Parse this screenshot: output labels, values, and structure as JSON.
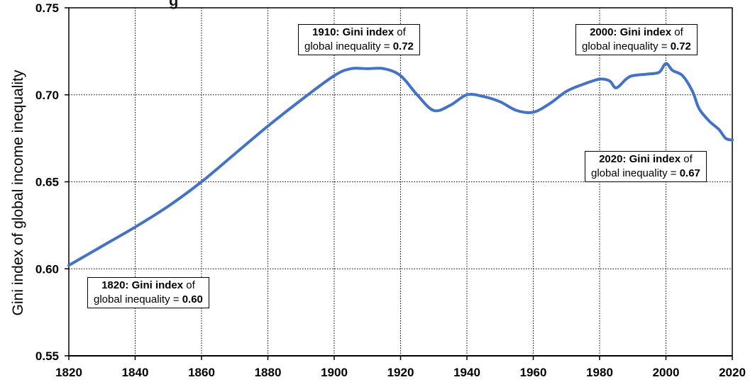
{
  "title_fragment": "g",
  "chart_data": {
    "type": "line",
    "ylabel": "Gini index of global income inequality",
    "xlabel": "",
    "xlim": [
      1820,
      2020
    ],
    "ylim": [
      0.55,
      0.75
    ],
    "x_ticks": [
      "1820",
      "1840",
      "1860",
      "1880",
      "1900",
      "1920",
      "1940",
      "1960",
      "1980",
      "2000",
      "2020"
    ],
    "y_ticks": [
      "0.55",
      "0.60",
      "0.65",
      "0.70",
      "0.75"
    ],
    "grid": true,
    "line_color": "#4472C4",
    "series": [
      {
        "x": [
          1820,
          1830,
          1840,
          1850,
          1860,
          1870,
          1880,
          1890,
          1900,
          1905,
          1910,
          1915,
          1920,
          1925,
          1930,
          1935,
          1940,
          1945,
          1950,
          1955,
          1960,
          1965,
          1970,
          1975,
          1980,
          1983,
          1985,
          1988,
          1990,
          1995,
          1998,
          2000,
          2002,
          2005,
          2008,
          2010,
          2013,
          2016,
          2018,
          2020
        ],
        "y": [
          0.602,
          0.613,
          0.624,
          0.636,
          0.65,
          0.666,
          0.682,
          0.697,
          0.711,
          0.715,
          0.715,
          0.715,
          0.711,
          0.7,
          0.691,
          0.694,
          0.7,
          0.699,
          0.696,
          0.691,
          0.69,
          0.695,
          0.702,
          0.706,
          0.709,
          0.708,
          0.704,
          0.709,
          0.711,
          0.712,
          0.713,
          0.718,
          0.714,
          0.711,
          0.702,
          0.692,
          0.685,
          0.68,
          0.675,
          0.674
        ]
      }
    ],
    "annotations": [
      {
        "year": "1820:",
        "bold_text": "Gini index",
        "of": "of",
        "line2": "global inequality =",
        "value": "0.60"
      },
      {
        "year": "1910:",
        "bold_text": "Gini index",
        "of": "of",
        "line2": "global inequality =",
        "value": "0.72"
      },
      {
        "year": "2000:",
        "bold_text": "Gini index",
        "of": "of",
        "line2": "global inequality =",
        "value": "0.72"
      },
      {
        "year": "2020:",
        "bold_text": "Gini index",
        "of": "of",
        "line2": "global inequality =",
        "value": "0.67"
      }
    ]
  }
}
